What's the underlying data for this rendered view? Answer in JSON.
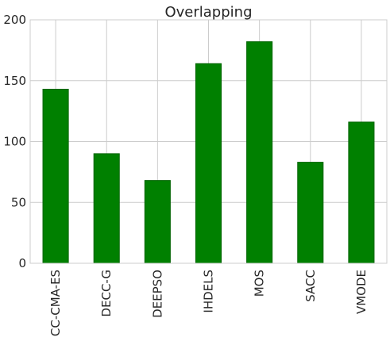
{
  "chart_data": {
    "type": "bar",
    "title": "Overlapping",
    "categories": [
      "CC-CMA-ES",
      "DECC-G",
      "DEEPSO",
      "IHDELS",
      "MOS",
      "SACC",
      "VMODE"
    ],
    "values": [
      143,
      90,
      68,
      164,
      182,
      83,
      116
    ],
    "ylim": [
      0,
      200
    ],
    "yticks": [
      0,
      50,
      100,
      150,
      200
    ],
    "grid": true,
    "bar_color": "#008000",
    "bar_edge_color": "#006400"
  }
}
